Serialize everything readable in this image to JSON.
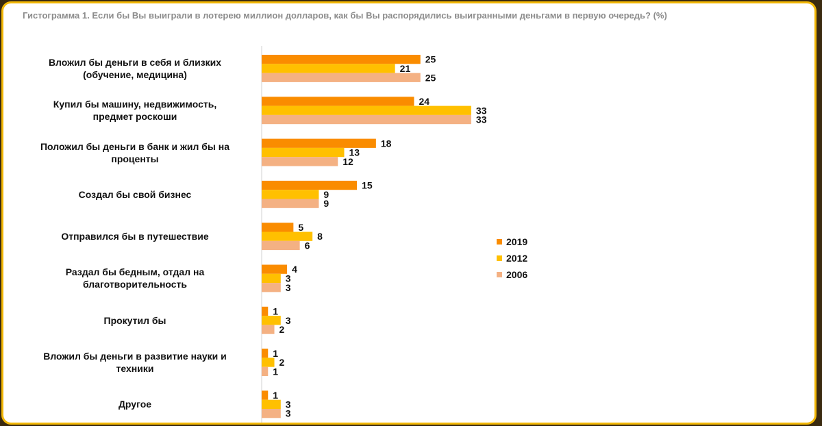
{
  "title": "Гистограмма 1. Если бы Вы выиграли в лотерею миллион долларов, как бы Вы распорядились выигранными деньгами в первую очередь? (%)",
  "chart_data": {
    "type": "bar",
    "orientation": "horizontal",
    "title": "Гистограмма 1. Если бы Вы выиграли в лотерею миллион долларов, как бы Вы распорядились выигранными деньгами в первую очередь? (%)",
    "categories": [
      [
        "Вложил бы деньги в себя и близких",
        "(обучение, медицина)"
      ],
      [
        "Купил бы машину, недвижимость,",
        "предмет роскоши"
      ],
      [
        "Положил бы деньги в банк и жил бы на",
        "проценты"
      ],
      [
        "Создал бы свой бизнес"
      ],
      [
        "Отправился бы в путешествие"
      ],
      [
        "Раздал бы бедным, отдал на",
        "благотворительность"
      ],
      [
        "Прокутил бы"
      ],
      [
        "Вложил бы деньги в развитие науки и",
        "техники"
      ],
      [
        "Другое"
      ]
    ],
    "series": [
      {
        "name": "2019",
        "color": "#fa8c00",
        "values": [
          25,
          24,
          18,
          15,
          5,
          4,
          1,
          1,
          1
        ]
      },
      {
        "name": "2012",
        "color": "#ffc000",
        "values": [
          21,
          33,
          13,
          9,
          8,
          3,
          3,
          2,
          3
        ]
      },
      {
        "name": "2006",
        "color": "#f4b183",
        "values": [
          25,
          33,
          12,
          9,
          6,
          3,
          2,
          1,
          3
        ]
      }
    ],
    "xlim": [
      0,
      36
    ],
    "legend": "right",
    "grid": false,
    "data_labels": true
  }
}
